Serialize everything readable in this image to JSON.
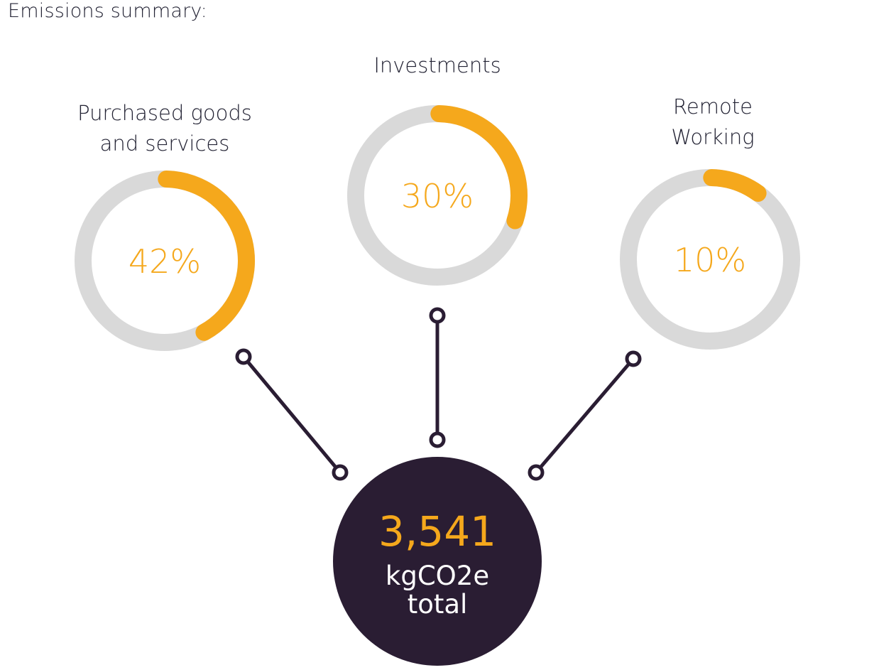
{
  "title": "Emissions summary:",
  "categories": [
    {
      "label_lines": [
        "Purchased goods",
        "and services"
      ],
      "percent": 42,
      "percent_text": "42%"
    },
    {
      "label_lines": [
        "Investments"
      ],
      "percent": 30,
      "percent_text": "30%"
    },
    {
      "label_lines": [
        "Remote",
        "Working"
      ],
      "percent": 10,
      "percent_text": "10%"
    }
  ],
  "total": {
    "value": "3,541",
    "unit_line1": "kgCO2e",
    "unit_line2": "total"
  },
  "colors": {
    "accent": "#f5a81c",
    "track": "#d9d9d9",
    "dark": "#2a1d33",
    "connector": "#2a1d33"
  }
}
